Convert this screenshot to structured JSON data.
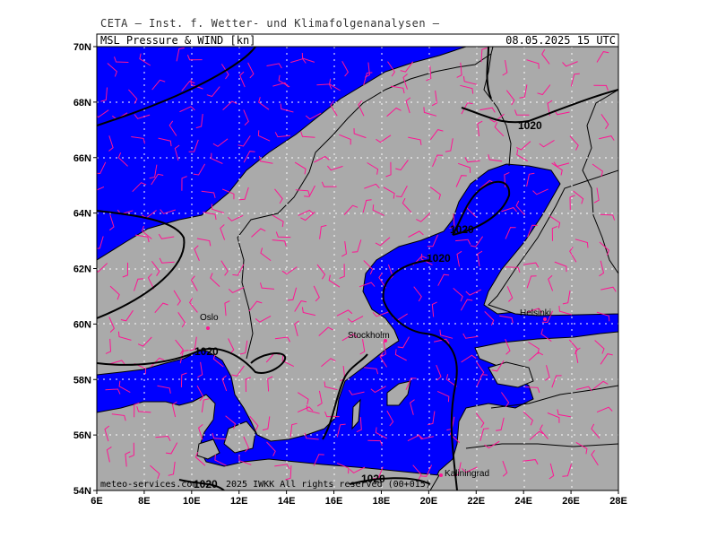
{
  "header": {
    "supertitle": "CETA — Inst. f. Wetter- und Klimafolgenanalysen —",
    "map_title": "MSL_Pressure_&_WIND [kn]",
    "valid_time": "08.05.2025  15 UTC"
  },
  "footer": {
    "credit_left": "meteo-services.com",
    "credit_right": "2025 IWKK All rights reserved (00+015)"
  },
  "map": {
    "lon_range": [
      6,
      28
    ],
    "lat_range": [
      54,
      70
    ],
    "lon_ticks": [
      "6E",
      "8E",
      "10E",
      "12E",
      "14E",
      "16E",
      "18E",
      "20E",
      "22E",
      "24E",
      "26E",
      "28E"
    ],
    "lat_ticks": [
      "54N",
      "56N",
      "58N",
      "60N",
      "62N",
      "64N",
      "66N",
      "68N",
      "70N"
    ],
    "colors": {
      "sea": "#0000ff",
      "land": "#aaaaaa",
      "wind": "#ff1493",
      "isobar": "#000000",
      "grid": "#ffffff"
    },
    "cities": [
      "Oslo",
      "Stockholm",
      "Helsinki",
      "Kaliningrad"
    ],
    "isobar_labels": [
      "1020",
      "1020",
      "1020",
      "1020",
      "1020",
      "1020"
    ]
  }
}
